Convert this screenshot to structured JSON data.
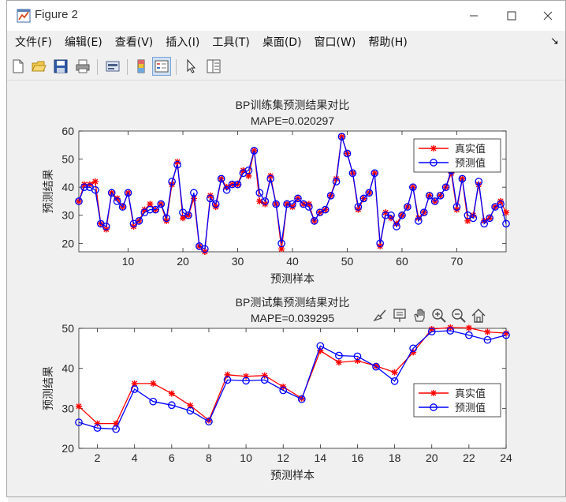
{
  "window": {
    "title": "Figure 2"
  },
  "menu": [
    "文件(F)",
    "编辑(E)",
    "查看(V)",
    "插入(I)",
    "工具(T)",
    "桌面(D)",
    "窗口(W)",
    "帮助(H)"
  ],
  "toolbar": [
    "new-figure",
    "open-file",
    "save",
    "print",
    "link-plot",
    "hide-plot-tools",
    "show-plot-tools",
    "edit-plot",
    "open-property-inspector"
  ],
  "axes_toolbar": [
    "brush-icon",
    "data-tips-icon",
    "pan-icon",
    "zoom-in-icon",
    "zoom-out-icon",
    "home-icon"
  ],
  "colors": {
    "true": "#ff0000",
    "pred": "#0000ff"
  },
  "chart_data": [
    {
      "type": "line",
      "title": "BP训练集预测结果对比",
      "subtitle": "MAPE=0.020297",
      "xlabel": "预测样本",
      "ylabel": "预测结果",
      "xlim": [
        1,
        79
      ],
      "ylim": [
        17,
        60
      ],
      "xticks": [
        10,
        20,
        30,
        40,
        50,
        60,
        70
      ],
      "yticks": [
        20,
        30,
        40,
        50,
        60
      ],
      "legend_position": "top-right",
      "series": [
        {
          "name": "真实值",
          "marker": "*",
          "color": "#ff0000",
          "values": [
            35,
            41,
            41,
            42,
            27,
            25,
            38,
            36,
            33,
            38,
            26,
            28,
            32,
            34,
            32,
            34,
            28,
            41,
            49,
            29,
            30,
            36,
            19,
            17,
            37,
            33,
            43,
            40,
            41,
            41,
            46,
            44,
            53,
            35,
            34,
            44,
            34,
            18,
            34,
            33,
            36,
            34,
            34,
            28,
            31,
            32,
            37,
            43,
            58,
            52,
            45,
            32,
            36,
            38,
            45,
            19,
            31,
            29,
            27,
            30,
            33,
            40,
            29,
            31,
            37,
            35,
            37,
            40,
            45,
            32,
            43,
            28,
            30,
            41,
            28,
            29,
            33,
            35,
            31
          ]
        },
        {
          "name": "预测值",
          "marker": "o",
          "color": "#0000ff",
          "values": [
            35,
            40,
            40,
            39,
            27,
            26,
            38,
            35,
            33,
            38,
            27,
            28,
            31,
            32,
            32,
            34,
            29,
            42,
            48,
            31,
            30,
            38,
            19,
            18,
            36,
            34,
            43,
            39,
            41,
            41,
            45,
            46,
            53,
            38,
            35,
            43,
            34,
            20,
            34,
            34,
            36,
            34,
            33,
            28,
            31,
            32,
            37,
            42,
            58,
            52,
            45,
            33,
            36,
            38,
            45,
            20,
            30,
            30,
            26,
            30,
            33,
            40,
            28,
            31,
            37,
            35,
            37,
            40,
            46,
            33,
            43,
            30,
            29,
            42,
            27,
            29,
            33,
            34,
            27
          ]
        }
      ]
    },
    {
      "type": "line",
      "title": "BP测试集预测结果对比",
      "subtitle": "MAPE=0.039295",
      "xlabel": "预测样本",
      "ylabel": "预测结果",
      "xlim": [
        1,
        24
      ],
      "ylim": [
        20,
        50
      ],
      "xticks": [
        2,
        4,
        6,
        8,
        10,
        12,
        14,
        16,
        18,
        20,
        22,
        24
      ],
      "yticks": [
        20,
        30,
        40,
        50
      ],
      "legend_position": "bottom-right",
      "series": [
        {
          "name": "真实值",
          "marker": "*",
          "color": "#ff0000",
          "values": [
            30.5,
            26.2,
            26.2,
            36.2,
            36.2,
            33.7,
            30.7,
            27.0,
            38.4,
            38.0,
            38.2,
            35.4,
            32.5,
            44.4,
            41.5,
            41.9,
            40.6,
            39.0,
            44.0,
            49.8,
            50.2,
            50.1,
            49.1,
            48.8
          ]
        },
        {
          "name": "预测值",
          "marker": "o",
          "color": "#0000ff",
          "values": [
            26.5,
            25.1,
            24.8,
            34.8,
            31.7,
            30.8,
            29.4,
            26.7,
            37.1,
            36.9,
            37.1,
            34.5,
            32.3,
            45.6,
            43.2,
            43.0,
            40.4,
            36.8,
            45.0,
            49.2,
            49.4,
            48.3,
            47.1,
            48.3
          ]
        }
      ]
    }
  ]
}
